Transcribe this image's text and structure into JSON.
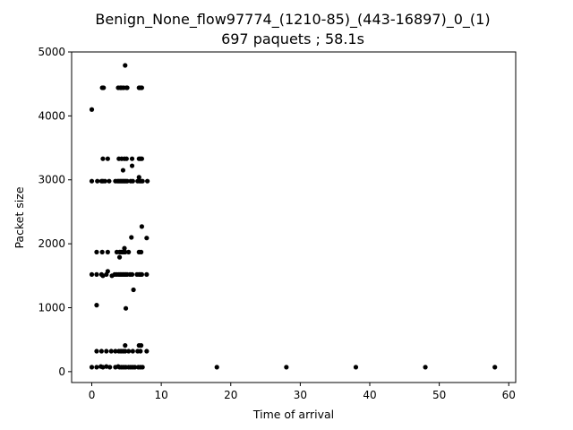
{
  "chart_data": {
    "type": "scatter",
    "title_line1": "Benign_None_flow97774_(1210-85)_(443-16897)_0_(1)",
    "title_line2": "697 paquets ; 58.1s",
    "xlabel": "Time of arrival",
    "ylabel": "Packet size",
    "xlim": [
      -2.9,
      61
    ],
    "ylim": [
      -170,
      5000
    ],
    "xticks": [
      0,
      10,
      20,
      30,
      40,
      50,
      60
    ],
    "yticks": [
      0,
      1000,
      2000,
      3000,
      4000,
      5000
    ],
    "marker_color": "#000000",
    "points": [
      [
        0.0,
        4100
      ],
      [
        4.8,
        4790
      ],
      [
        1.5,
        4440
      ],
      [
        1.7,
        4440
      ],
      [
        3.8,
        4440
      ],
      [
        4.1,
        4440
      ],
      [
        4.3,
        4440
      ],
      [
        4.6,
        4440
      ],
      [
        5.0,
        4440
      ],
      [
        5.1,
        4440
      ],
      [
        6.8,
        4440
      ],
      [
        7.0,
        4440
      ],
      [
        7.2,
        4440
      ],
      [
        1.6,
        3330
      ],
      [
        2.3,
        3330
      ],
      [
        3.9,
        3330
      ],
      [
        4.3,
        3330
      ],
      [
        4.7,
        3330
      ],
      [
        5.0,
        3330
      ],
      [
        5.8,
        3330
      ],
      [
        6.8,
        3330
      ],
      [
        7.0,
        3330
      ],
      [
        7.2,
        3330
      ],
      [
        5.8,
        3220
      ],
      [
        4.5,
        3150
      ],
      [
        6.8,
        3040
      ],
      [
        0.0,
        2980
      ],
      [
        0.8,
        2980
      ],
      [
        1.4,
        2980
      ],
      [
        1.6,
        2980
      ],
      [
        1.9,
        2980
      ],
      [
        2.5,
        2980
      ],
      [
        3.4,
        2980
      ],
      [
        3.7,
        2980
      ],
      [
        3.9,
        2980
      ],
      [
        4.1,
        2980
      ],
      [
        4.3,
        2980
      ],
      [
        4.5,
        2980
      ],
      [
        4.7,
        2980
      ],
      [
        4.9,
        2980
      ],
      [
        5.1,
        2980
      ],
      [
        5.6,
        2980
      ],
      [
        5.9,
        2980
      ],
      [
        6.6,
        2980
      ],
      [
        6.9,
        2980
      ],
      [
        7.1,
        2980
      ],
      [
        7.3,
        2980
      ],
      [
        8.0,
        2980
      ],
      [
        7.2,
        2270
      ],
      [
        5.7,
        2100
      ],
      [
        7.9,
        2090
      ],
      [
        0.7,
        1870
      ],
      [
        1.5,
        1870
      ],
      [
        2.3,
        1870
      ],
      [
        3.6,
        1870
      ],
      [
        4.0,
        1870
      ],
      [
        4.2,
        1870
      ],
      [
        4.4,
        1870
      ],
      [
        4.6,
        1870
      ],
      [
        4.8,
        1870
      ],
      [
        5.3,
        1870
      ],
      [
        6.8,
        1870
      ],
      [
        7.1,
        1870
      ],
      [
        4.7,
        1930
      ],
      [
        4.0,
        1790
      ],
      [
        0.0,
        1520
      ],
      [
        0.7,
        1520
      ],
      [
        1.4,
        1520
      ],
      [
        1.6,
        1500
      ],
      [
        2.1,
        1520
      ],
      [
        2.3,
        1570
      ],
      [
        2.9,
        1500
      ],
      [
        3.3,
        1520
      ],
      [
        3.6,
        1520
      ],
      [
        3.9,
        1520
      ],
      [
        4.1,
        1520
      ],
      [
        4.3,
        1520
      ],
      [
        4.5,
        1520
      ],
      [
        4.7,
        1520
      ],
      [
        4.9,
        1520
      ],
      [
        5.1,
        1520
      ],
      [
        5.5,
        1520
      ],
      [
        5.8,
        1520
      ],
      [
        6.5,
        1520
      ],
      [
        6.8,
        1520
      ],
      [
        7.0,
        1520
      ],
      [
        7.2,
        1520
      ],
      [
        7.9,
        1520
      ],
      [
        6.0,
        1280
      ],
      [
        0.7,
        1040
      ],
      [
        4.9,
        990
      ],
      [
        0.7,
        320
      ],
      [
        1.4,
        320
      ],
      [
        2.1,
        320
      ],
      [
        2.8,
        320
      ],
      [
        3.4,
        320
      ],
      [
        3.9,
        320
      ],
      [
        4.2,
        320
      ],
      [
        4.5,
        320
      ],
      [
        4.8,
        320
      ],
      [
        5.3,
        320
      ],
      [
        5.9,
        320
      ],
      [
        6.6,
        320
      ],
      [
        7.0,
        320
      ],
      [
        7.9,
        320
      ],
      [
        4.8,
        410
      ],
      [
        6.8,
        410
      ],
      [
        7.1,
        410
      ],
      [
        0.0,
        70
      ],
      [
        0.7,
        70
      ],
      [
        1.3,
        80
      ],
      [
        1.6,
        70
      ],
      [
        2.1,
        80
      ],
      [
        2.6,
        70
      ],
      [
        3.4,
        70
      ],
      [
        3.8,
        80
      ],
      [
        4.0,
        70
      ],
      [
        4.3,
        70
      ],
      [
        4.6,
        70
      ],
      [
        4.9,
        70
      ],
      [
        5.3,
        70
      ],
      [
        5.6,
        70
      ],
      [
        5.9,
        70
      ],
      [
        6.2,
        70
      ],
      [
        6.7,
        70
      ],
      [
        7.0,
        70
      ],
      [
        7.3,
        70
      ],
      [
        18.0,
        70
      ],
      [
        28.0,
        70
      ],
      [
        38.0,
        70
      ],
      [
        48.0,
        70
      ],
      [
        58.0,
        70
      ]
    ]
  }
}
